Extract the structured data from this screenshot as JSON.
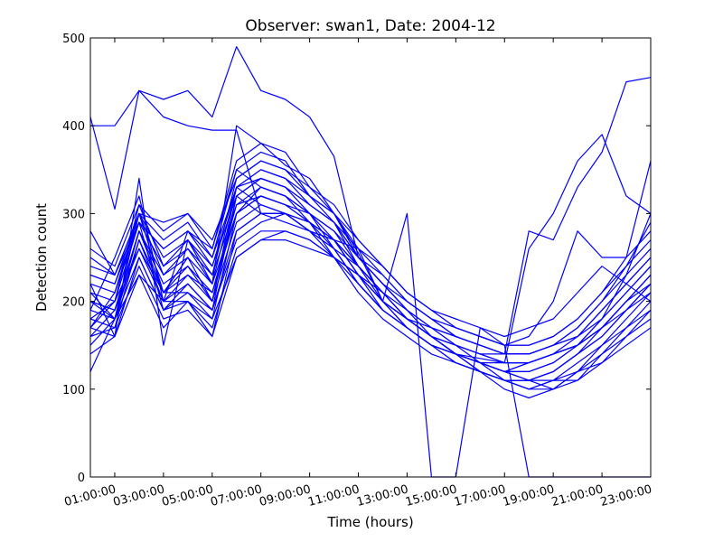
{
  "chart_data": {
    "type": "line",
    "title": "Observer: swan1, Date: 2004-12",
    "xlabel": "Time (hours)",
    "ylabel": "Detection count",
    "x_ticks": [
      "01:00:00",
      "03:00:00",
      "05:00:00",
      "07:00:00",
      "09:00:00",
      "11:00:00",
      "13:00:00",
      "15:00:00",
      "17:00:00",
      "19:00:00",
      "21:00:00",
      "23:00:00"
    ],
    "y_ticks": [
      0,
      100,
      200,
      300,
      400,
      500
    ],
    "xlim": [
      0,
      23
    ],
    "ylim": [
      0,
      500
    ],
    "grid": false,
    "legend": "none",
    "line_color": "#0000ff",
    "x": [
      0,
      1,
      2,
      3,
      4,
      5,
      6,
      7,
      8,
      9,
      10,
      11,
      12,
      13,
      14,
      15,
      16,
      17,
      18,
      19,
      20,
      21,
      22,
      23
    ],
    "series": [
      {
        "values": [
          410,
          305,
          440,
          410,
          400,
          395,
          395,
          300,
          290,
          280,
          270,
          260,
          200,
          180,
          160,
          140,
          130,
          120,
          130,
          140,
          150,
          180,
          230,
          300
        ]
      },
      {
        "values": [
          400,
          400,
          440,
          430,
          440,
          410,
          490,
          440,
          430,
          410,
          365,
          250,
          220,
          190,
          160,
          140,
          135,
          130,
          130,
          140,
          150,
          170,
          200,
          220
        ]
      },
      {
        "values": [
          220,
          160,
          340,
          150,
          270,
          220,
          400,
          380,
          355,
          340,
          300,
          255,
          200,
          180,
          160,
          150,
          140,
          140,
          140,
          150,
          170,
          200,
          240,
          290
        ]
      },
      {
        "values": [
          190,
          250,
          320,
          200,
          280,
          260,
          350,
          330,
          320,
          290,
          270,
          240,
          200,
          180,
          170,
          160,
          150,
          140,
          140,
          150,
          160,
          190,
          220,
          250
        ]
      },
      {
        "values": [
          200,
          180,
          300,
          210,
          240,
          200,
          330,
          310,
          300,
          280,
          270,
          230,
          190,
          170,
          150,
          140,
          130,
          120,
          130,
          140,
          150,
          170,
          200,
          230
        ]
      },
      {
        "values": [
          170,
          200,
          290,
          190,
          220,
          190,
          320,
          300,
          300,
          290,
          260,
          220,
          190,
          170,
          150,
          140,
          130,
          130,
          130,
          140,
          150,
          180,
          210,
          240
        ]
      },
      {
        "values": [
          180,
          170,
          270,
          200,
          230,
          210,
          310,
          320,
          310,
          300,
          270,
          230,
          200,
          180,
          160,
          140,
          120,
          110,
          110,
          120,
          140,
          170,
          190,
          220
        ]
      },
      {
        "values": [
          150,
          180,
          250,
          190,
          210,
          180,
          300,
          330,
          320,
          300,
          260,
          220,
          190,
          170,
          150,
          140,
          120,
          110,
          100,
          110,
          130,
          150,
          180,
          210
        ]
      },
      {
        "values": [
          140,
          160,
          230,
          170,
          200,
          160,
          280,
          300,
          300,
          290,
          250,
          210,
          180,
          160,
          140,
          130,
          120,
          100,
          90,
          100,
          120,
          140,
          170,
          200
        ]
      },
      {
        "values": [
          160,
          190,
          280,
          210,
          250,
          200,
          320,
          340,
          330,
          300,
          280,
          240,
          210,
          180,
          160,
          140,
          130,
          110,
          110,
          120,
          140,
          160,
          190,
          210
        ]
      },
      {
        "values": [
          170,
          210,
          300,
          230,
          260,
          220,
          330,
          350,
          340,
          310,
          290,
          240,
          210,
          190,
          170,
          150,
          130,
          120,
          120,
          130,
          150,
          170,
          200,
          230
        ]
      },
      {
        "values": [
          210,
          200,
          310,
          240,
          270,
          230,
          340,
          360,
          350,
          320,
          300,
          250,
          220,
          190,
          170,
          150,
          140,
          130,
          130,
          140,
          160,
          180,
          210,
          240
        ]
      },
      {
        "values": [
          230,
          220,
          290,
          260,
          280,
          240,
          330,
          340,
          330,
          310,
          290,
          250,
          220,
          200,
          180,
          160,
          150,
          140,
          140,
          150,
          160,
          190,
          220,
          250
        ]
      },
      {
        "values": [
          240,
          230,
          300,
          270,
          290,
          250,
          350,
          370,
          360,
          320,
          290,
          250,
          230,
          200,
          180,
          160,
          150,
          140,
          140,
          150,
          170,
          200,
          230,
          260
        ]
      },
      {
        "values": [
          260,
          240,
          310,
          280,
          300,
          260,
          360,
          380,
          370,
          330,
          300,
          260,
          240,
          210,
          190,
          170,
          160,
          150,
          150,
          160,
          180,
          210,
          240,
          270
        ]
      },
      {
        "values": [
          280,
          230,
          300,
          290,
          300,
          270,
          340,
          360,
          350,
          330,
          310,
          270,
          240,
          210,
          190,
          170,
          160,
          150,
          150,
          160,
          180,
          210,
          250,
          280
        ]
      },
      {
        "values": [
          200,
          190,
          280,
          220,
          240,
          210,
          300,
          320,
          310,
          290,
          270,
          230,
          200,
          300,
          0,
          0,
          170,
          150,
          0,
          0,
          0,
          0,
          0,
          0
        ]
      },
      {
        "values": [
          190,
          180,
          270,
          210,
          230,
          200,
          290,
          310,
          300,
          280,
          260,
          220,
          190,
          170,
          150,
          140,
          130,
          120,
          120,
          130,
          150,
          170,
          200,
          230
        ]
      },
      {
        "values": [
          180,
          200,
          260,
          200,
          220,
          190,
          280,
          300,
          300,
          280,
          250,
          220,
          190,
          170,
          150,
          130,
          120,
          110,
          110,
          120,
          140,
          160,
          190,
          220
        ]
      },
      {
        "values": [
          210,
          180,
          280,
          230,
          250,
          220,
          300,
          320,
          310,
          290,
          270,
          240,
          210,
          180,
          160,
          150,
          140,
          130,
          260,
          300,
          360,
          390,
          320,
          300
        ]
      },
      {
        "values": [
          220,
          210,
          290,
          240,
          260,
          230,
          310,
          330,
          320,
          300,
          280,
          250,
          220,
          190,
          170,
          160,
          150,
          140,
          280,
          270,
          330,
          370,
          450,
          455
        ]
      },
      {
        "values": [
          230,
          220,
          300,
          250,
          270,
          240,
          320,
          340,
          330,
          310,
          290,
          260,
          230,
          200,
          180,
          170,
          160,
          150,
          160,
          200,
          280,
          250,
          250,
          360
        ]
      },
      {
        "values": [
          250,
          230,
          290,
          260,
          280,
          250,
          330,
          350,
          340,
          320,
          300,
          270,
          240,
          210,
          190,
          180,
          170,
          160,
          170,
          180,
          210,
          240,
          220,
          200
        ]
      },
      {
        "values": [
          120,
          180,
          230,
          200,
          200,
          180,
          250,
          270,
          270,
          260,
          250,
          230,
          210,
          180,
          160,
          140,
          130,
          120,
          110,
          100,
          120,
          130,
          150,
          170
        ]
      },
      {
        "values": [
          170,
          160,
          250,
          190,
          200,
          170,
          260,
          280,
          280,
          270,
          250,
          230,
          200,
          170,
          150,
          140,
          120,
          110,
          100,
          110,
          110,
          140,
          160,
          180
        ]
      },
      {
        "values": [
          200,
          190,
          260,
          210,
          210,
          190,
          270,
          290,
          300,
          280,
          260,
          240,
          210,
          180,
          160,
          140,
          130,
          120,
          110,
          110,
          120,
          150,
          170,
          190
        ]
      },
      {
        "values": [
          160,
          170,
          240,
          180,
          190,
          160,
          250,
          270,
          280,
          270,
          250,
          230,
          200,
          170,
          150,
          130,
          120,
          110,
          100,
          100,
          110,
          130,
          160,
          190
        ]
      }
    ]
  }
}
